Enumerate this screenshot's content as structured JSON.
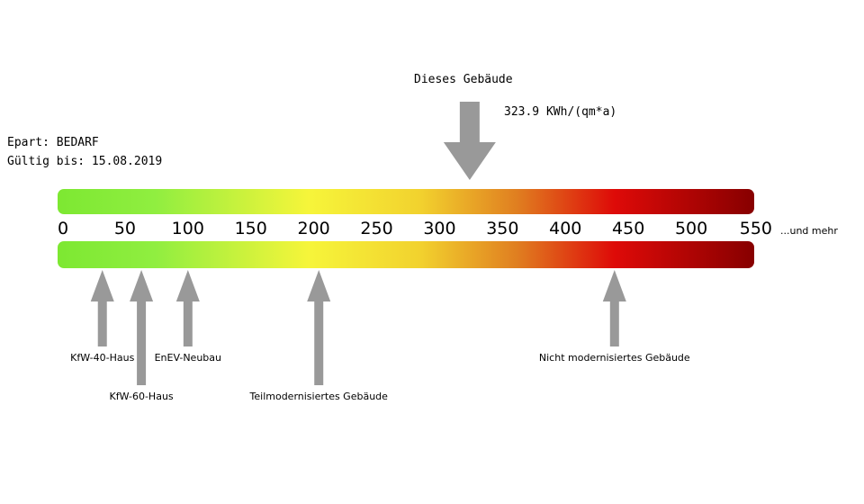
{
  "chart_data": {
    "type": "scale",
    "title": "Dieses Gebäude",
    "value": 323.9,
    "value_label": "323.9 KWh/(qm*a)",
    "info": [
      "Epart: BEDARF",
      "Gültig bis: 15.08.2019"
    ],
    "xlim": [
      0,
      550
    ],
    "xticks": [
      0,
      50,
      100,
      150,
      200,
      250,
      300,
      350,
      400,
      450,
      500,
      550
    ],
    "overflow_label": "...und mehr",
    "markers": [
      {
        "name": "KfW-40-Haus",
        "value": 32
      },
      {
        "name": "KfW-60-Haus",
        "value": 63
      },
      {
        "name": "EnEV-Neubau",
        "value": 100
      },
      {
        "name": "Teilmodernisiertes Gebäude",
        "value": 204
      },
      {
        "name": "Nicht modernisiertes Gebäude",
        "value": 439
      }
    ]
  }
}
